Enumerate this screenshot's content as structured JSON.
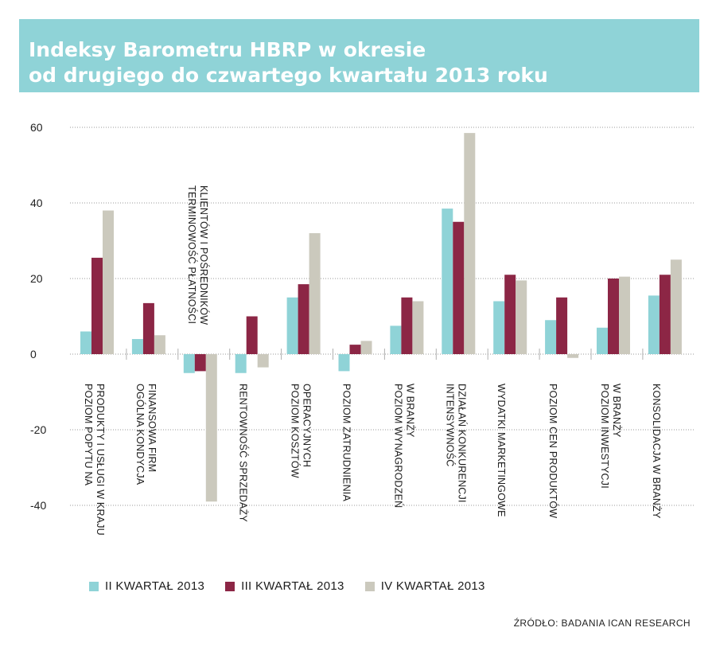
{
  "header": {
    "title_line1": "Indeksy Barometru HBRP w okresie",
    "title_line2": "od drugiego do czwartego kwartału 2013 roku"
  },
  "chart_data": {
    "type": "bar",
    "title": "Indeksy Barometru HBRP w okresie od drugiego do czwartego kwartału 2013 roku",
    "categories": [
      [
        "POZIOM POPYTU NA",
        "PRODUKTY I USŁUGI W KRAJU"
      ],
      [
        "OGÓLNA KONDYCJA",
        "FINANSOWA FIRM"
      ],
      [
        "TERMINOWOŚĆ PŁATNOŚCI",
        "KLIENTÓW I POŚREDNIKÓW"
      ],
      [
        "RENTOWNOŚĆ SPRZEDAŻY"
      ],
      [
        "POZIOM KOSZTÓW",
        "OPERACYJNYCH"
      ],
      [
        "POZIOM ZATRUDNIENIA"
      ],
      [
        "POZIOM WYNAGRODZEŃ",
        "W BRANŻY"
      ],
      [
        "INTENSYWNOŚĆ",
        "DZIAŁAŃ KONKURENCJI"
      ],
      [
        "WYDATKI MARKETINGOWE"
      ],
      [
        "POZIOM CEN PRODUKTÓW"
      ],
      [
        "POZIOM INWESTYCJI",
        "W BRANŻY"
      ],
      [
        "KONSOLIDACJA W BRANŻY"
      ]
    ],
    "series": [
      {
        "name": "II KWARTAŁ 2013",
        "color": "#8fd3d7",
        "values": [
          6,
          4,
          -5,
          -5,
          15,
          -4.5,
          7.5,
          38.5,
          14,
          9,
          7,
          15.5
        ]
      },
      {
        "name": "III KWARTAŁ 2013",
        "color": "#8c2645",
        "values": [
          25.5,
          13.5,
          -4.5,
          10,
          18.5,
          2.5,
          15,
          35,
          21,
          15,
          20,
          21
        ]
      },
      {
        "name": "IV KWARTAŁ 2013",
        "color": "#cbc9bd",
        "values": [
          38,
          5,
          -39,
          -3.5,
          32,
          3.5,
          14,
          58.5,
          19.5,
          -1,
          20.5,
          25
        ]
      }
    ],
    "y_ticks": [
      "60",
      "40",
      "20",
      "0",
      "-20",
      "-40"
    ],
    "ylim": [
      -40,
      60
    ],
    "grid": true,
    "legend_position": "bottom-left"
  },
  "source": "ŹRÓDŁO: BADANIA ICAN RESEARCH"
}
